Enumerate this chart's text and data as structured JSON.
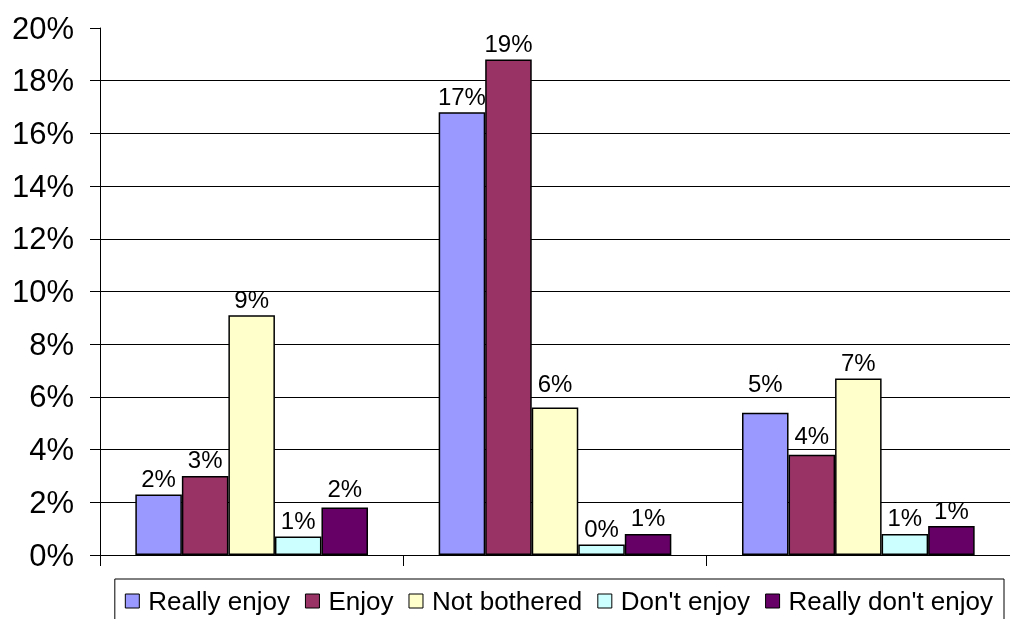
{
  "chart_data": {
    "type": "bar",
    "categories": [
      null,
      null,
      null
    ],
    "series": [
      {
        "name": "Really enjoy",
        "color": "#9999ff",
        "values": [
          2.3,
          16.8,
          5.4
        ],
        "value_labels": [
          "2%",
          "17%",
          "5%"
        ]
      },
      {
        "name": "Enjoy",
        "color": "#993366",
        "values": [
          3.0,
          18.8,
          3.8
        ],
        "value_labels": [
          "3%",
          "19%",
          "4%"
        ]
      },
      {
        "name": "Not bothered",
        "color": "#ffffcc",
        "values": [
          9.1,
          5.6,
          6.7
        ],
        "value_labels": [
          "9%",
          "6%",
          "7%"
        ]
      },
      {
        "name": "Don't enjoy",
        "color": "#ccffff",
        "values": [
          0.7,
          0.4,
          0.8
        ],
        "value_labels": [
          "1%",
          "0%",
          "1%"
        ]
      },
      {
        "name": "Really don't enjoy",
        "color": "#660066",
        "values": [
          1.8,
          0.8,
          1.1
        ],
        "value_labels": [
          "2%",
          "1%",
          "1%"
        ]
      }
    ],
    "ylim": [
      0,
      20
    ],
    "yticks": [
      {
        "value": 0,
        "label": "0%"
      },
      {
        "value": 2,
        "label": "2%"
      },
      {
        "value": 4,
        "label": "4%"
      },
      {
        "value": 6,
        "label": "6%"
      },
      {
        "value": 8,
        "label": "8%"
      },
      {
        "value": 10,
        "label": "10%"
      },
      {
        "value": 12,
        "label": "12%"
      },
      {
        "value": 14,
        "label": "14%"
      },
      {
        "value": 16,
        "label": "16%"
      },
      {
        "value": 18,
        "label": "18%"
      },
      {
        "value": 20,
        "label": "20%"
      }
    ],
    "grid": "y",
    "legend": "bottom",
    "tick_labels": "y"
  }
}
